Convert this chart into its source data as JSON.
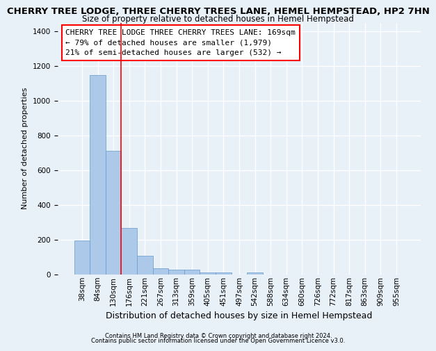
{
  "title": "CHERRY TREE LODGE, THREE CHERRY TREES LANE, HEMEL HEMPSTEAD, HP2 7HN",
  "subtitle": "Size of property relative to detached houses in Hemel Hempstead",
  "xlabel": "Distribution of detached houses by size in Hemel Hempstead",
  "ylabel": "Number of detached properties",
  "footnote1": "Contains HM Land Registry data © Crown copyright and database right 2024.",
  "footnote2": "Contains public sector information licensed under the Open Government Licence v3.0.",
  "bar_labels": [
    "38sqm",
    "84sqm",
    "130sqm",
    "176sqm",
    "221sqm",
    "267sqm",
    "313sqm",
    "359sqm",
    "405sqm",
    "451sqm",
    "497sqm",
    "542sqm",
    "588sqm",
    "634sqm",
    "680sqm",
    "726sqm",
    "772sqm",
    "817sqm",
    "863sqm",
    "909sqm",
    "955sqm"
  ],
  "bar_values": [
    197,
    1148,
    714,
    270,
    110,
    35,
    28,
    28,
    13,
    13,
    0,
    13,
    0,
    0,
    0,
    0,
    0,
    0,
    0,
    0,
    0
  ],
  "bar_color": "#adc9ea",
  "bar_edge_color": "#6699cc",
  "vline_x_index": 2.5,
  "annotation_text": "CHERRY TREE LODGE THREE CHERRY TREES LANE: 169sqm\n← 79% of detached houses are smaller (1,979)\n21% of semi-detached houses are larger (532) →",
  "ylim": [
    0,
    1450
  ],
  "title_fontsize": 9.5,
  "subtitle_fontsize": 8.5,
  "xlabel_fontsize": 9,
  "ylabel_fontsize": 8,
  "tick_fontsize": 7.5,
  "annot_fontsize": 8,
  "footnote_fontsize": 6,
  "bg_color": "#e8f0f8",
  "grid_color": "white"
}
